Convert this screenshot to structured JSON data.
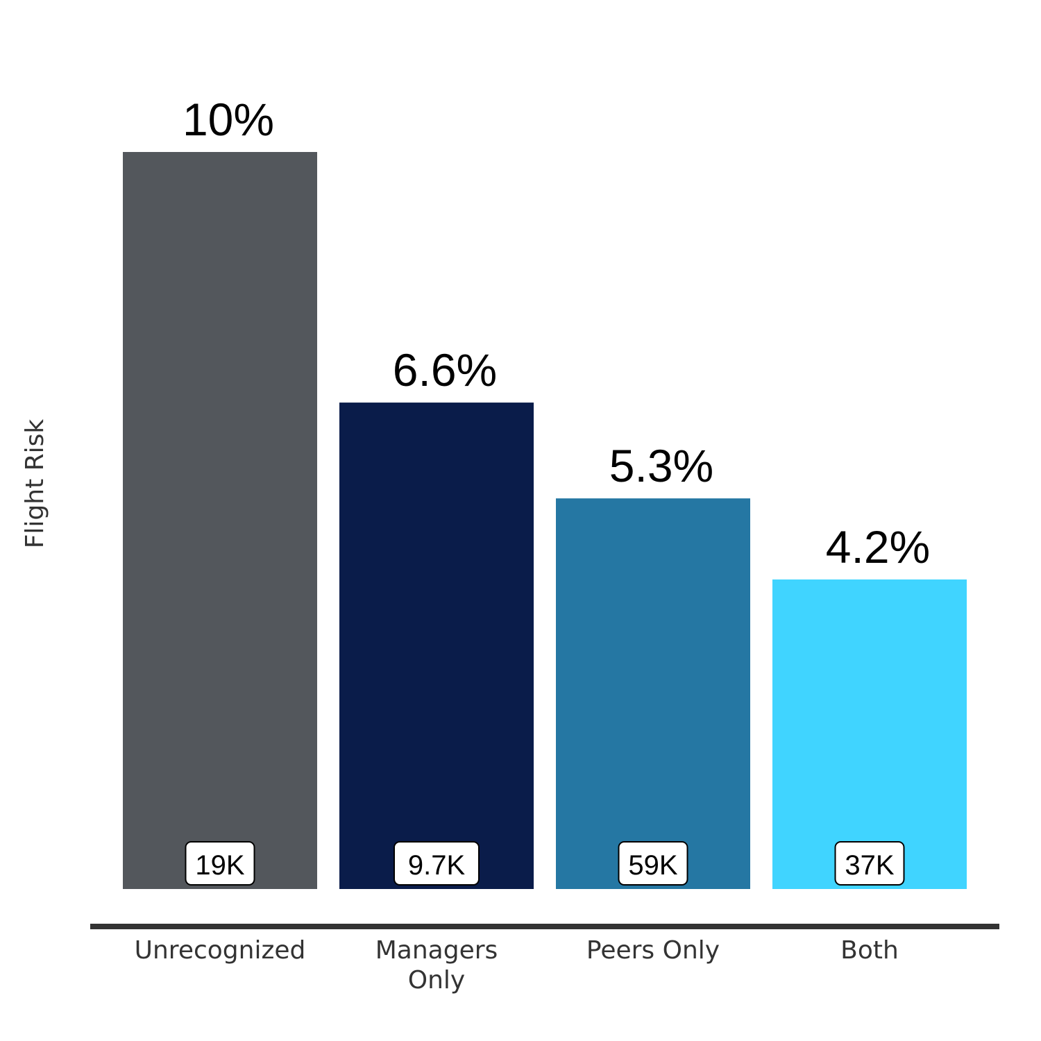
{
  "chart_data": {
    "type": "bar",
    "categories": [
      "Unrecognized",
      "Managers Only",
      "Peers Only",
      "Both"
    ],
    "category_lines": [
      [
        "Unrecognized"
      ],
      [
        "Managers",
        "Only"
      ],
      [
        "Peers Only"
      ],
      [
        "Both"
      ]
    ],
    "values": [
      10,
      6.6,
      5.3,
      4.2
    ],
    "value_labels": [
      "10%",
      "6.6%",
      "5.3%",
      "4.2%"
    ],
    "counts": [
      "19K",
      "9.7K",
      "59K",
      "37K"
    ],
    "colors": [
      "#53575c",
      "#0a1c4a",
      "#2577a3",
      "#40d4ff"
    ],
    "title": "",
    "xlabel": "",
    "ylabel": "Flight Risk",
    "ylim": [
      0,
      10
    ],
    "grid": false,
    "legend": "none",
    "axis_color": "#333333"
  }
}
